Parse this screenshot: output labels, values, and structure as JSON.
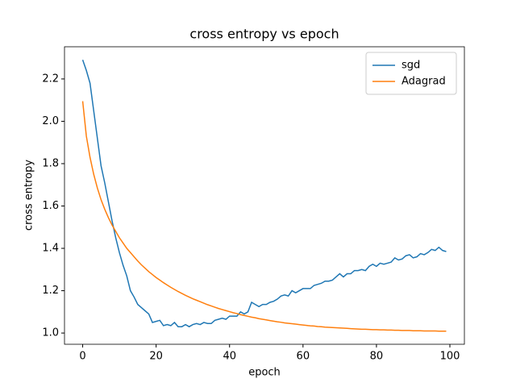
{
  "chart_data": {
    "type": "line",
    "title": "cross entropy vs epoch",
    "x_label": "epoch",
    "y_label": "cross entropy",
    "x": [
      0,
      1,
      2,
      3,
      4,
      5,
      6,
      7,
      8,
      9,
      10,
      11,
      12,
      13,
      14,
      15,
      16,
      17,
      18,
      19,
      20,
      21,
      22,
      23,
      24,
      25,
      26,
      27,
      28,
      29,
      30,
      31,
      32,
      33,
      34,
      35,
      36,
      37,
      38,
      39,
      40,
      41,
      42,
      43,
      44,
      45,
      46,
      47,
      48,
      49,
      50,
      51,
      52,
      53,
      54,
      55,
      56,
      57,
      58,
      59,
      60,
      61,
      62,
      63,
      64,
      65,
      66,
      67,
      68,
      69,
      70,
      71,
      72,
      73,
      74,
      75,
      76,
      77,
      78,
      79,
      80,
      81,
      82,
      83,
      84,
      85,
      86,
      87,
      88,
      89,
      90,
      91,
      92,
      93,
      94,
      95,
      96,
      97,
      98,
      99
    ],
    "series": [
      {
        "name": "sgd",
        "color": "#1f77b4",
        "values": [
          2.29,
          2.24,
          2.18,
          2.05,
          1.92,
          1.79,
          1.71,
          1.62,
          1.53,
          1.45,
          1.38,
          1.32,
          1.27,
          1.2,
          1.17,
          1.135,
          1.12,
          1.105,
          1.09,
          1.05,
          1.055,
          1.06,
          1.035,
          1.04,
          1.035,
          1.05,
          1.03,
          1.03,
          1.04,
          1.03,
          1.04,
          1.045,
          1.04,
          1.05,
          1.045,
          1.045,
          1.06,
          1.065,
          1.07,
          1.065,
          1.08,
          1.08,
          1.08,
          1.1,
          1.09,
          1.1,
          1.145,
          1.135,
          1.125,
          1.135,
          1.135,
          1.145,
          1.15,
          1.16,
          1.175,
          1.18,
          1.175,
          1.2,
          1.19,
          1.2,
          1.21,
          1.21,
          1.21,
          1.225,
          1.23,
          1.235,
          1.245,
          1.245,
          1.25,
          1.265,
          1.28,
          1.265,
          1.28,
          1.28,
          1.295,
          1.295,
          1.3,
          1.295,
          1.315,
          1.325,
          1.315,
          1.33,
          1.325,
          1.33,
          1.335,
          1.355,
          1.345,
          1.35,
          1.365,
          1.37,
          1.355,
          1.36,
          1.375,
          1.37,
          1.38,
          1.395,
          1.39,
          1.405,
          1.39,
          1.385
        ]
      },
      {
        "name": "Adagrad",
        "color": "#ff7f0e",
        "values": [
          2.095,
          1.93,
          1.83,
          1.75,
          1.685,
          1.63,
          1.585,
          1.545,
          1.51,
          1.48,
          1.45,
          1.425,
          1.4,
          1.38,
          1.36,
          1.34,
          1.322,
          1.306,
          1.29,
          1.276,
          1.262,
          1.25,
          1.238,
          1.227,
          1.216,
          1.206,
          1.196,
          1.187,
          1.178,
          1.17,
          1.162,
          1.155,
          1.148,
          1.141,
          1.134,
          1.128,
          1.122,
          1.116,
          1.111,
          1.106,
          1.101,
          1.096,
          1.092,
          1.087,
          1.083,
          1.079,
          1.075,
          1.072,
          1.068,
          1.065,
          1.062,
          1.059,
          1.056,
          1.053,
          1.051,
          1.048,
          1.046,
          1.044,
          1.042,
          1.04,
          1.038,
          1.036,
          1.034,
          1.033,
          1.031,
          1.03,
          1.028,
          1.027,
          1.026,
          1.025,
          1.024,
          1.023,
          1.022,
          1.021,
          1.02,
          1.019,
          1.018,
          1.018,
          1.017,
          1.016,
          1.016,
          1.015,
          1.015,
          1.014,
          1.014,
          1.013,
          1.013,
          1.012,
          1.012,
          1.012,
          1.011,
          1.011,
          1.011,
          1.01,
          1.01,
          1.01,
          1.01,
          1.009,
          1.009,
          1.009
        ]
      }
    ],
    "xlim": [
      -4.95,
      103.95
    ],
    "xticks": [
      0,
      20,
      40,
      60,
      80,
      100
    ],
    "ylim": [
      0.947,
      2.352
    ],
    "yticks": [
      {
        "value": 1,
        "label": "1.0"
      },
      1.2,
      1.4,
      1.6,
      1.8,
      {
        "value": 2,
        "label": "2.0"
      },
      2.2
    ],
    "grid": false,
    "legend": "upper right"
  }
}
